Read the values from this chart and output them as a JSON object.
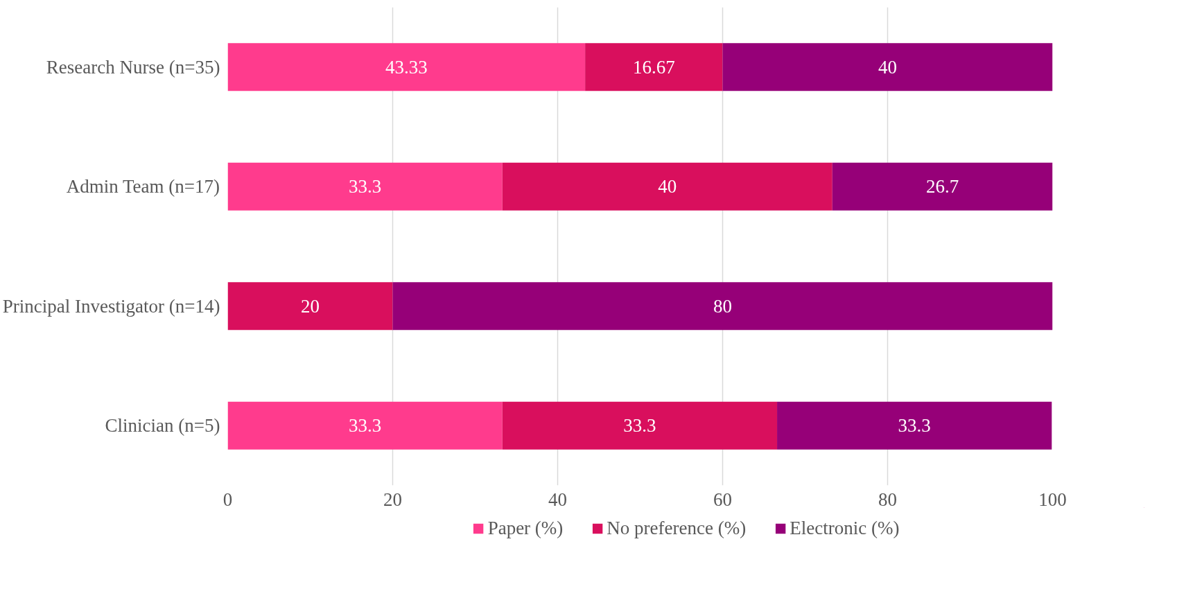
{
  "chart_data": {
    "type": "bar",
    "orientation": "horizontal",
    "stacked": true,
    "categories": [
      "Research Nurse (n=35)",
      "Admin Team (n=17)",
      "Principal Investigator (n=14)",
      "Clinician (n=5)"
    ],
    "series": [
      {
        "name": "Paper (%)",
        "color": "#ff3b8d",
        "values": [
          43.33,
          33.3,
          0,
          33.3
        ],
        "value_labels": [
          "43.33",
          "33.3",
          null,
          "33.3"
        ]
      },
      {
        "name": "No preference (%)",
        "color": "#d90f5d",
        "values": [
          16.67,
          40,
          20,
          33.3
        ],
        "value_labels": [
          "16.67",
          "40",
          "20",
          "33.3"
        ]
      },
      {
        "name": "Electronic (%)",
        "color": "#960078",
        "values": [
          40,
          26.7,
          80,
          33.3
        ],
        "value_labels": [
          "40",
          "26.7",
          "80",
          "33.3"
        ]
      }
    ],
    "xlim": [
      0,
      100
    ],
    "xticks": [
      0,
      20,
      40,
      60,
      80,
      100
    ],
    "grid": "x",
    "legend": "bottom"
  }
}
